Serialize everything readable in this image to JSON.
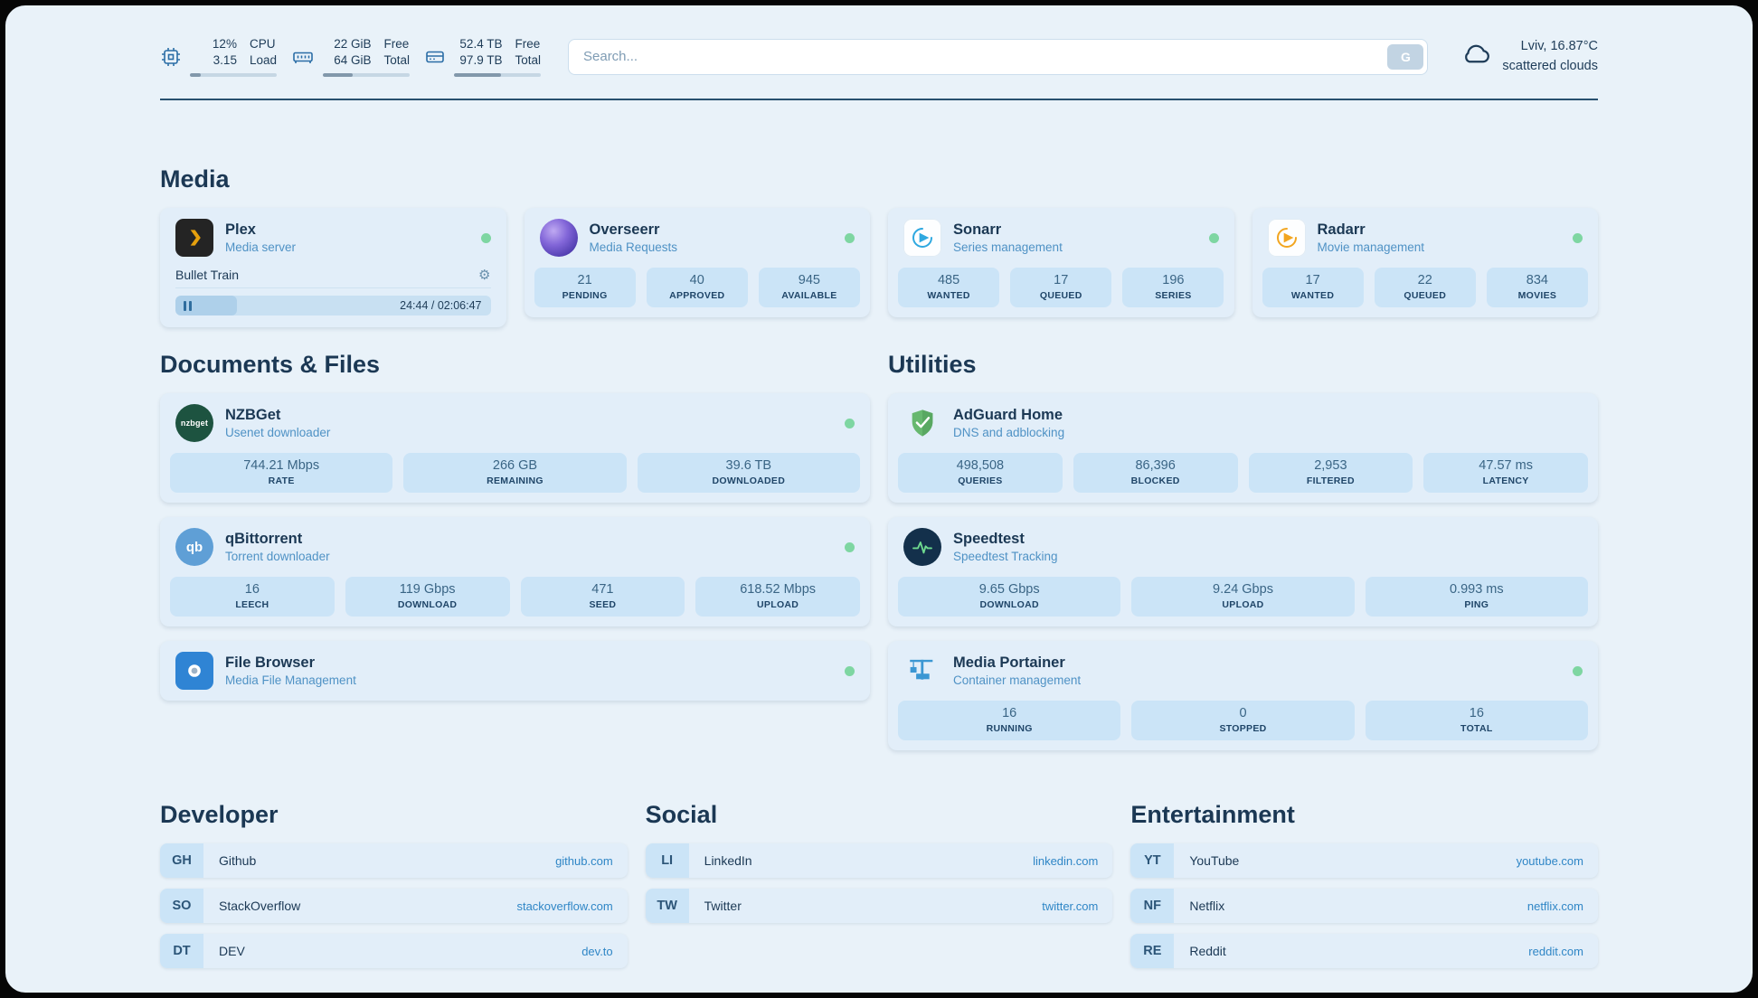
{
  "topbar": {
    "cpu": {
      "value1": "12%",
      "value2": "3.15",
      "label1": "CPU",
      "label2": "Load",
      "bar_pct": 12
    },
    "memory": {
      "value1": "22 GiB",
      "value2": "64 GiB",
      "label1": "Free",
      "label2": "Total",
      "bar_pct": 34
    },
    "disk": {
      "value1": "52.4 TB",
      "value2": "97.9 TB",
      "label1": "Free",
      "label2": "Total",
      "bar_pct": 54
    },
    "search": {
      "placeholder": "Search...",
      "button_label": "G"
    },
    "weather": {
      "location": "Lviv, 16.87°C",
      "condition": "scattered clouds"
    }
  },
  "colors": {
    "accent": "#2f86c6",
    "status_ok": "#7ed6a2",
    "stat_bg": "#cbe4f7"
  },
  "sections": {
    "media": {
      "title": "Media",
      "cards": [
        {
          "name": "Plex",
          "subtitle": "Media server",
          "icon": "plex-icon",
          "status": "online",
          "player": {
            "track": "Bullet Train",
            "time": "24:44 / 02:06:47",
            "progress_pct": 19.5
          }
        },
        {
          "name": "Overseerr",
          "subtitle": "Media Requests",
          "icon": "overseerr-icon",
          "status": "online",
          "stats": [
            {
              "value": "21",
              "label": "PENDING"
            },
            {
              "value": "40",
              "label": "APPROVED"
            },
            {
              "value": "945",
              "label": "AVAILABLE"
            }
          ]
        },
        {
          "name": "Sonarr",
          "subtitle": "Series management",
          "icon": "sonarr-icon",
          "status": "online",
          "stats": [
            {
              "value": "485",
              "label": "WANTED"
            },
            {
              "value": "17",
              "label": "QUEUED"
            },
            {
              "value": "196",
              "label": "SERIES"
            }
          ]
        },
        {
          "name": "Radarr",
          "subtitle": "Movie management",
          "icon": "radarr-icon",
          "status": "online",
          "stats": [
            {
              "value": "17",
              "label": "WANTED"
            },
            {
              "value": "22",
              "label": "QUEUED"
            },
            {
              "value": "834",
              "label": "MOVIES"
            }
          ]
        }
      ]
    },
    "documents": {
      "title": "Documents & Files",
      "cards": [
        {
          "name": "NZBGet",
          "subtitle": "Usenet downloader",
          "icon": "nzbget-icon",
          "status": "online",
          "stats": [
            {
              "value": "744.21 Mbps",
              "label": "RATE"
            },
            {
              "value": "266 GB",
              "label": "REMAINING"
            },
            {
              "value": "39.6 TB",
              "label": "DOWNLOADED"
            }
          ]
        },
        {
          "name": "qBittorrent",
          "subtitle": "Torrent downloader",
          "icon": "qbittorrent-icon",
          "status": "online",
          "stats": [
            {
              "value": "16",
              "label": "LEECH"
            },
            {
              "value": "119 Gbps",
              "label": "DOWNLOAD"
            },
            {
              "value": "471",
              "label": "SEED"
            },
            {
              "value": "618.52 Mbps",
              "label": "UPLOAD"
            }
          ]
        },
        {
          "name": "File Browser",
          "subtitle": "Media File Management",
          "icon": "filebrowser-icon",
          "status": "online",
          "stats": []
        }
      ]
    },
    "utilities": {
      "title": "Utilities",
      "cards": [
        {
          "name": "AdGuard Home",
          "subtitle": "DNS and adblocking",
          "icon": "adguard-icon",
          "stats": [
            {
              "value": "498,508",
              "label": "QUERIES"
            },
            {
              "value": "86,396",
              "label": "BLOCKED"
            },
            {
              "value": "2,953",
              "label": "FILTERED"
            },
            {
              "value": "47.57 ms",
              "label": "LATENCY"
            }
          ]
        },
        {
          "name": "Speedtest",
          "subtitle": "Speedtest Tracking",
          "icon": "speedtest-icon",
          "stats": [
            {
              "value": "9.65 Gbps",
              "label": "DOWNLOAD"
            },
            {
              "value": "9.24 Gbps",
              "label": "UPLOAD"
            },
            {
              "value": "0.993 ms",
              "label": "PING"
            }
          ]
        },
        {
          "name": "Media Portainer",
          "subtitle": "Container management",
          "icon": "portainer-icon",
          "status": "online",
          "stats": [
            {
              "value": "16",
              "label": "RUNNING"
            },
            {
              "value": "0",
              "label": "STOPPED"
            },
            {
              "value": "16",
              "label": "TOTAL"
            }
          ]
        }
      ]
    }
  },
  "bookmarks": {
    "developer": {
      "title": "Developer",
      "items": [
        {
          "abbr": "GH",
          "name": "Github",
          "url": "github.com"
        },
        {
          "abbr": "SO",
          "name": "StackOverflow",
          "url": "stackoverflow.com"
        },
        {
          "abbr": "DT",
          "name": "DEV",
          "url": "dev.to"
        }
      ]
    },
    "social": {
      "title": "Social",
      "items": [
        {
          "abbr": "LI",
          "name": "LinkedIn",
          "url": "linkedin.com"
        },
        {
          "abbr": "TW",
          "name": "Twitter",
          "url": "twitter.com"
        }
      ]
    },
    "entertainment": {
      "title": "Entertainment",
      "items": [
        {
          "abbr": "YT",
          "name": "YouTube",
          "url": "youtube.com"
        },
        {
          "abbr": "NF",
          "name": "Netflix",
          "url": "netflix.com"
        },
        {
          "abbr": "RE",
          "name": "Reddit",
          "url": "reddit.com"
        }
      ]
    }
  }
}
